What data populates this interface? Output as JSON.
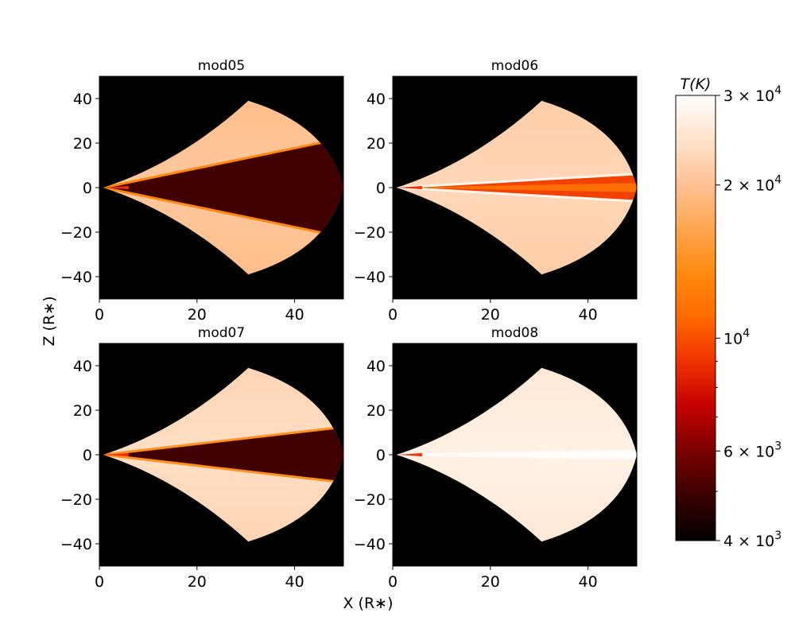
{
  "chart_data": {
    "type": "heatmap",
    "xlabel": "X (R∗)",
    "ylabel": "Z (R∗)",
    "xlim": [
      0,
      50
    ],
    "ylim": [
      -50,
      50
    ],
    "xticks": [
      0,
      20,
      40
    ],
    "yticks": [
      40,
      20,
      0,
      -20,
      -40
    ],
    "colorbar": {
      "title": "T(K)",
      "scale": "log",
      "range": [
        4000,
        30000
      ],
      "tick_labels": [
        {
          "value": 30000,
          "mantissa": "3",
          "exponent": "4"
        },
        {
          "value": 20000,
          "mantissa": "2",
          "exponent": "4"
        },
        {
          "value": 10000,
          "mantissa": "",
          "exponent": "4"
        },
        {
          "value": 6000,
          "mantissa": "6",
          "exponent": "3"
        },
        {
          "value": 4000,
          "mantissa": "4",
          "exponent": "3"
        }
      ],
      "minor_ticks": [
        9000,
        8000,
        7000,
        5000
      ],
      "colors": [
        "#000000",
        "#3a0000",
        "#7a0000",
        "#c40000",
        "#ee3000",
        "#ff6a00",
        "#ff8a10",
        "#ffa550",
        "#ffc294",
        "#ffe2cb",
        "#ffffff"
      ]
    },
    "panels": [
      {
        "title": "mod05",
        "disk_half_angle_deg": 24,
        "outer_T": 19500,
        "wedge_T": 5000,
        "edge_T": 13000,
        "midplane_T": 5000
      },
      {
        "title": "mod06",
        "disk_half_angle_deg": 7,
        "outer_T": 21500,
        "wedge_T": 9500,
        "edge_T": 28000,
        "midplane_T": 12000
      },
      {
        "title": "mod07",
        "disk_half_angle_deg": 14,
        "outer_T": 22500,
        "wedge_T": 5000,
        "edge_T": 14000,
        "midplane_T": 5000
      },
      {
        "title": "mod08",
        "disk_half_angle_deg": 2,
        "outer_T": 25500,
        "wedge_T": 30000,
        "edge_T": 29000,
        "midplane_T": 30000
      }
    ]
  }
}
